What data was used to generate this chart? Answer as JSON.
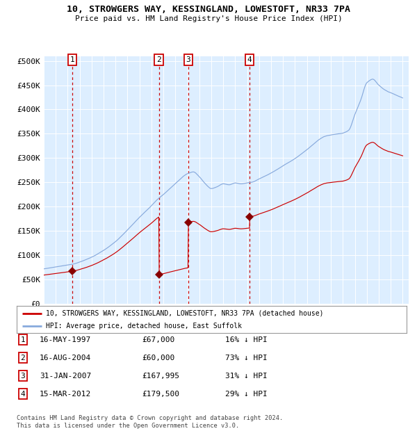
{
  "title1": "10, STROWGERS WAY, KESSINGLAND, LOWESTOFT, NR33 7PA",
  "title2": "Price paid vs. HM Land Registry's House Price Index (HPI)",
  "ylabel_ticks": [
    "£0",
    "£50K",
    "£100K",
    "£150K",
    "£200K",
    "£250K",
    "£300K",
    "£350K",
    "£400K",
    "£450K",
    "£500K"
  ],
  "ytick_values": [
    0,
    50000,
    100000,
    150000,
    200000,
    250000,
    300000,
    350000,
    400000,
    450000,
    500000
  ],
  "ylim": [
    0,
    510000
  ],
  "xlim_start": 1995.0,
  "xlim_end": 2025.5,
  "background_color": "#ddeeff",
  "grid_color": "#ffffff",
  "sale_dates": [
    1997.37,
    2004.62,
    2007.08,
    2012.21
  ],
  "sale_prices": [
    67000,
    60000,
    167995,
    179500
  ],
  "sale_labels": [
    "1",
    "2",
    "3",
    "4"
  ],
  "legend_line1": "10, STROWGERS WAY, KESSINGLAND, LOWESTOFT, NR33 7PA (detached house)",
  "legend_line2": "HPI: Average price, detached house, East Suffolk",
  "table_rows": [
    [
      "1",
      "16-MAY-1997",
      "£67,000",
      "16% ↓ HPI"
    ],
    [
      "2",
      "16-AUG-2004",
      "£60,000",
      "73% ↓ HPI"
    ],
    [
      "3",
      "31-JAN-2007",
      "£167,995",
      "31% ↓ HPI"
    ],
    [
      "4",
      "15-MAR-2012",
      "£179,500",
      "29% ↓ HPI"
    ]
  ],
  "footer": "Contains HM Land Registry data © Crown copyright and database right 2024.\nThis data is licensed under the Open Government Licence v3.0.",
  "hpi_color": "#88aadd",
  "sale_line_color": "#cc0000",
  "dashed_line_color": "#cc0000",
  "marker_color": "#880000",
  "box_color": "#cc0000",
  "hpi_waypoints_x": [
    1995.0,
    1996.0,
    1997.0,
    1997.5,
    1998.0,
    1999.0,
    2000.0,
    2001.0,
    2002.0,
    2003.0,
    2004.0,
    2004.5,
    2005.0,
    2006.0,
    2007.0,
    2007.5,
    2008.0,
    2008.5,
    2009.0,
    2009.5,
    2010.0,
    2010.5,
    2011.0,
    2011.5,
    2012.0,
    2012.5,
    2013.0,
    2014.0,
    2015.0,
    2016.0,
    2017.0,
    2017.5,
    2018.0,
    2018.5,
    2019.0,
    2019.5,
    2020.0,
    2020.5,
    2021.0,
    2021.5,
    2022.0,
    2022.5,
    2023.0,
    2023.5,
    2024.0,
    2024.5,
    2025.0
  ],
  "hpi_waypoints_y": [
    72000,
    76000,
    80000,
    82000,
    86000,
    96000,
    110000,
    128000,
    152000,
    178000,
    202000,
    215000,
    225000,
    248000,
    268000,
    272000,
    262000,
    248000,
    238000,
    242000,
    248000,
    246000,
    250000,
    248000,
    250000,
    252000,
    258000,
    270000,
    285000,
    300000,
    318000,
    328000,
    338000,
    345000,
    348000,
    350000,
    352000,
    358000,
    390000,
    420000,
    455000,
    462000,
    450000,
    440000,
    435000,
    430000,
    425000
  ]
}
